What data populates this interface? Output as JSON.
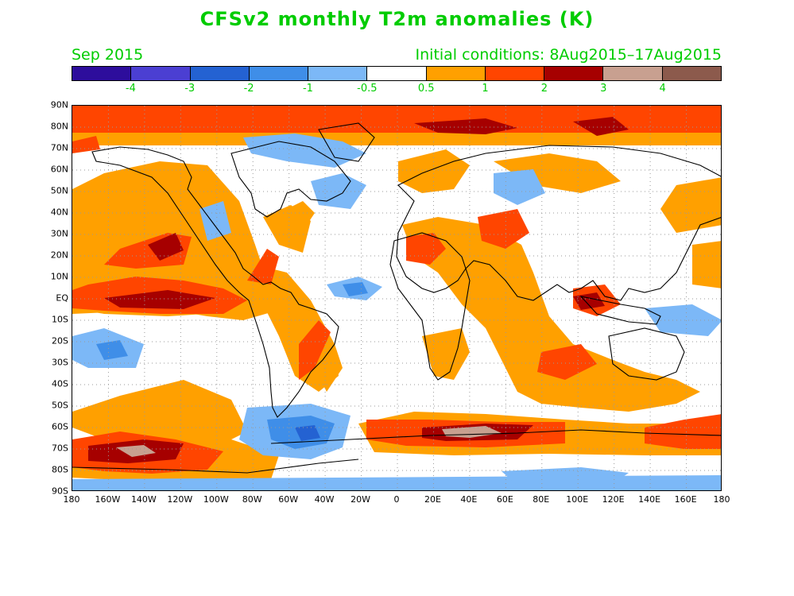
{
  "title": "CFSv2 monthly T2m anomalies (K)",
  "month_label": "Sep 2015",
  "initial_conditions": "Initial conditions: 8Aug2015–17Aug2015",
  "text_color": "#00cc00",
  "legend": {
    "colors": [
      "#2d0d9c",
      "#4b3fd2",
      "#2462d2",
      "#3f8ee8",
      "#7cb8f7",
      "#ffffff",
      "#ffa000",
      "#ff4500",
      "#a60000",
      "#c8a090",
      "#8c5a4c"
    ],
    "labels": [
      "-4",
      "-3",
      "-2",
      "-1",
      "-0.5",
      "0.5",
      "1",
      "2",
      "3",
      "4"
    ]
  },
  "lat_labels": [
    "90N",
    "80N",
    "70N",
    "60N",
    "50N",
    "40N",
    "30N",
    "20N",
    "10N",
    "EQ",
    "10S",
    "20S",
    "30S",
    "40S",
    "50S",
    "60S",
    "70S",
    "80S",
    "90S"
  ],
  "lon_labels": [
    "180",
    "160W",
    "140W",
    "120W",
    "100W",
    "80W",
    "60W",
    "40W",
    "20W",
    "0",
    "20E",
    "40E",
    "60E",
    "80E",
    "100E",
    "120E",
    "140E",
    "160E",
    "180"
  ]
}
